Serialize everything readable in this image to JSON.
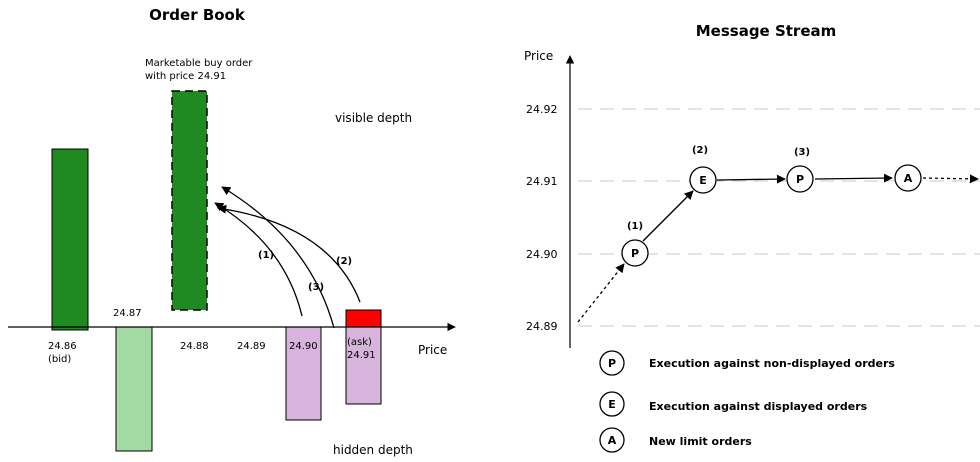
{
  "order_book": {
    "title": "Order Book",
    "axis_label": "Price",
    "visible_label": "visible depth",
    "hidden_label": "hidden depth",
    "annotation_line1": "Marketable buy order",
    "annotation_line2": "with price 24.91",
    "price_labels": {
      "p2486": "24.86",
      "bid": "(bid)",
      "p2487": "24.87",
      "p2488": "24.88",
      "p2489": "24.89",
      "p2490": "24.90",
      "ask": "(ask)",
      "p2491": "24.91"
    },
    "steps": {
      "s1": "(1)",
      "s2": "(2)",
      "s3": "(3)"
    },
    "colors": {
      "visible_bid": "#1f8a22",
      "hidden_bid": "#a3d9a3",
      "hidden_ask": "#d7b4dc",
      "visible_ask": "#ff0000"
    }
  },
  "message_stream": {
    "title": "Message Stream",
    "axis_label": "Price",
    "ticks": {
      "t2492": "24.92",
      "t2491": "24.91",
      "t2490": "24.90",
      "t2489": "24.89"
    },
    "steps": {
      "s1": "(1)",
      "s2": "(2)",
      "s3": "(3)"
    },
    "nodes": {
      "n1": "P",
      "n2": "E",
      "n3": "P",
      "n4": "A"
    },
    "legend": [
      {
        "symbol": "P",
        "text": "Execution against non-displayed orders"
      },
      {
        "symbol": "E",
        "text": "Execution against displayed orders"
      },
      {
        "symbol": "A",
        "text": "New limit orders"
      }
    ]
  }
}
